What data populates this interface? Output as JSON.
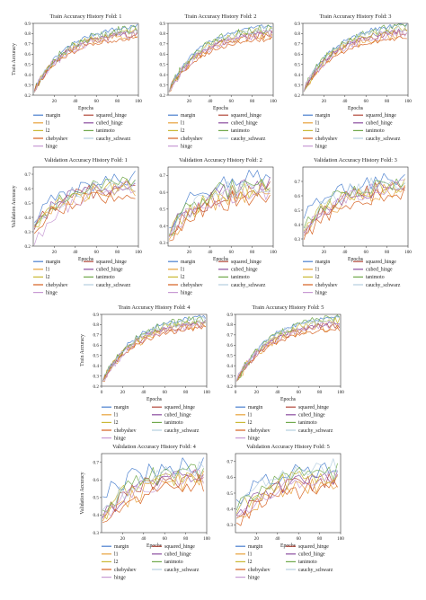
{
  "series_names": [
    "margin",
    "squared_hinge",
    "l1",
    "cubed_hinge",
    "l2",
    "tanimoto",
    "chebyshev",
    "cauchy_schwarz",
    "hinge"
  ],
  "colors": {
    "margin": "#4a7fcf",
    "squared_hinge": "#b3473a",
    "l1": "#e8a13a",
    "cubed_hinge": "#8a4c9e",
    "l2": "#c9b833",
    "tanimoto": "#6fa84a",
    "chebyshev": "#d65f1e",
    "cauchy_schwarz": "#b5cfe0",
    "hinge": "#c79ad4"
  },
  "chart_data": [
    {
      "type": "line",
      "title": "Train Accuracy History Fold: 1",
      "xlabel": "Epochs",
      "ylabel": "Train Accuracy",
      "xlim": [
        0,
        100
      ],
      "ylim": [
        0.2,
        0.9
      ],
      "xticks": [
        20,
        40,
        60,
        80,
        100
      ],
      "yticks": [
        0.2,
        0.3,
        0.4,
        0.5,
        0.6,
        0.7,
        0.8,
        0.9
      ],
      "ytick_labels": [
        "0.2",
        "0.3",
        "0.4",
        "0.5",
        "0.6",
        "0.7",
        "0.8",
        "0.9"
      ],
      "legend": "below",
      "series": [
        {
          "name": "margin",
          "start": 0.25,
          "end": 0.87
        },
        {
          "name": "squared_hinge",
          "start": 0.25,
          "end": 0.8
        },
        {
          "name": "l1",
          "start": 0.25,
          "end": 0.8
        },
        {
          "name": "cubed_hinge",
          "start": 0.25,
          "end": 0.82
        },
        {
          "name": "l2",
          "start": 0.25,
          "end": 0.83
        },
        {
          "name": "tanimoto",
          "start": 0.25,
          "end": 0.85
        },
        {
          "name": "chebyshev",
          "start": 0.25,
          "end": 0.76
        },
        {
          "name": "cauchy_schwarz",
          "start": 0.25,
          "end": 0.84
        },
        {
          "name": "hinge",
          "start": 0.25,
          "end": 0.8
        }
      ]
    },
    {
      "type": "line",
      "title": "Train Accuracy History Fold: 2",
      "xlabel": "Epochs",
      "ylabel": "",
      "xlim": [
        0,
        100
      ],
      "ylim": [
        0.2,
        0.9
      ],
      "xticks": [
        20,
        40,
        60,
        80,
        100
      ],
      "yticks": [
        0.2,
        0.3,
        0.4,
        0.5,
        0.6,
        0.7,
        0.8,
        0.9
      ],
      "ytick_labels": [
        "0.2",
        "0.3",
        "0.4",
        "0.5",
        "0.6",
        "0.7",
        "0.8",
        "0.9"
      ],
      "legend": "below",
      "series": [
        {
          "name": "margin",
          "start": 0.25,
          "end": 0.88
        },
        {
          "name": "squared_hinge",
          "start": 0.25,
          "end": 0.8
        },
        {
          "name": "l1",
          "start": 0.25,
          "end": 0.79
        },
        {
          "name": "cubed_hinge",
          "start": 0.25,
          "end": 0.82
        },
        {
          "name": "l2",
          "start": 0.25,
          "end": 0.84
        },
        {
          "name": "tanimoto",
          "start": 0.25,
          "end": 0.86
        },
        {
          "name": "chebyshev",
          "start": 0.25,
          "end": 0.75
        },
        {
          "name": "cauchy_schwarz",
          "start": 0.25,
          "end": 0.85
        },
        {
          "name": "hinge",
          "start": 0.25,
          "end": 0.8
        }
      ]
    },
    {
      "type": "line",
      "title": "Train Accuracy History Fold: 3",
      "xlabel": "Epochs",
      "ylabel": "",
      "xlim": [
        0,
        100
      ],
      "ylim": [
        0.2,
        0.9
      ],
      "xticks": [
        20,
        40,
        60,
        80,
        100
      ],
      "yticks": [
        0.2,
        0.3,
        0.4,
        0.5,
        0.6,
        0.7,
        0.8,
        0.9
      ],
      "ytick_labels": [
        "0.2",
        "0.3",
        "0.4",
        "0.5",
        "0.6",
        "0.7",
        "0.8",
        "0.9"
      ],
      "legend": "below",
      "series": [
        {
          "name": "margin",
          "start": 0.25,
          "end": 0.89
        },
        {
          "name": "squared_hinge",
          "start": 0.25,
          "end": 0.82
        },
        {
          "name": "l1",
          "start": 0.25,
          "end": 0.8
        },
        {
          "name": "cubed_hinge",
          "start": 0.25,
          "end": 0.83
        },
        {
          "name": "l2",
          "start": 0.25,
          "end": 0.85
        },
        {
          "name": "tanimoto",
          "start": 0.25,
          "end": 0.87
        },
        {
          "name": "chebyshev",
          "start": 0.25,
          "end": 0.76
        },
        {
          "name": "cauchy_schwarz",
          "start": 0.25,
          "end": 0.86
        },
        {
          "name": "hinge",
          "start": 0.25,
          "end": 0.81
        }
      ]
    },
    {
      "type": "line",
      "title": "Validation Accuracy History Fold: 1",
      "xlabel": "Epochs",
      "ylabel": "Validation Accuracy",
      "xlim": [
        0,
        100
      ],
      "ylim": [
        0.2,
        0.75
      ],
      "xticks": [
        20,
        40,
        60,
        80,
        100
      ],
      "yticks": [
        0.2,
        0.3,
        0.4,
        0.5,
        0.6,
        0.7
      ],
      "ytick_labels": [
        "0.2",
        "0.3",
        "0.4",
        "0.5",
        "0.6",
        "0.7"
      ],
      "legend": "below",
      "series": [
        {
          "name": "margin",
          "start": 0.38,
          "end": 0.67
        },
        {
          "name": "squared_hinge",
          "start": 0.35,
          "end": 0.62
        },
        {
          "name": "l1",
          "start": 0.33,
          "end": 0.6
        },
        {
          "name": "cubed_hinge",
          "start": 0.33,
          "end": 0.63
        },
        {
          "name": "l2",
          "start": 0.35,
          "end": 0.62
        },
        {
          "name": "tanimoto",
          "start": 0.36,
          "end": 0.65
        },
        {
          "name": "chebyshev",
          "start": 0.3,
          "end": 0.57
        },
        {
          "name": "cauchy_schwarz",
          "start": 0.36,
          "end": 0.64
        },
        {
          "name": "hinge",
          "start": 0.22,
          "end": 0.62
        }
      ]
    },
    {
      "type": "line",
      "title": "Validation Accuracy History Fold: 2",
      "xlabel": "Epochs",
      "ylabel": "",
      "xlim": [
        0,
        100
      ],
      "ylim": [
        0.28,
        0.75
      ],
      "xticks": [
        20,
        40,
        60,
        80,
        100
      ],
      "yticks": [
        0.3,
        0.4,
        0.5,
        0.6,
        0.7
      ],
      "ytick_labels": [
        "0.3",
        "0.4",
        "0.5",
        "0.6",
        "0.7"
      ],
      "legend": "below",
      "series": [
        {
          "name": "margin",
          "start": 0.4,
          "end": 0.7
        },
        {
          "name": "squared_hinge",
          "start": 0.35,
          "end": 0.62
        },
        {
          "name": "l1",
          "start": 0.33,
          "end": 0.6
        },
        {
          "name": "cubed_hinge",
          "start": 0.35,
          "end": 0.64
        },
        {
          "name": "l2",
          "start": 0.35,
          "end": 0.63
        },
        {
          "name": "tanimoto",
          "start": 0.36,
          "end": 0.66
        },
        {
          "name": "chebyshev",
          "start": 0.32,
          "end": 0.58
        },
        {
          "name": "cauchy_schwarz",
          "start": 0.36,
          "end": 0.65
        },
        {
          "name": "hinge",
          "start": 0.34,
          "end": 0.61
        }
      ]
    },
    {
      "type": "line",
      "title": "Validation Accuracy History Fold: 3",
      "xlabel": "Epochs",
      "ylabel": "",
      "xlim": [
        0,
        100
      ],
      "ylim": [
        0.25,
        0.8
      ],
      "xticks": [
        20,
        40,
        60,
        80,
        100
      ],
      "yticks": [
        0.3,
        0.4,
        0.5,
        0.6,
        0.7
      ],
      "ytick_labels": [
        "0.3",
        "0.4",
        "0.5",
        "0.6",
        "0.7"
      ],
      "legend": "below",
      "series": [
        {
          "name": "margin",
          "start": 0.45,
          "end": 0.72
        },
        {
          "name": "squared_hinge",
          "start": 0.35,
          "end": 0.66
        },
        {
          "name": "l1",
          "start": 0.33,
          "end": 0.64
        },
        {
          "name": "cubed_hinge",
          "start": 0.35,
          "end": 0.67
        },
        {
          "name": "l2",
          "start": 0.36,
          "end": 0.68
        },
        {
          "name": "tanimoto",
          "start": 0.38,
          "end": 0.7
        },
        {
          "name": "chebyshev",
          "start": 0.3,
          "end": 0.62
        },
        {
          "name": "cauchy_schwarz",
          "start": 0.38,
          "end": 0.7
        },
        {
          "name": "hinge",
          "start": 0.33,
          "end": 0.66
        }
      ]
    },
    {
      "type": "line",
      "title": "Train Accuracy History Fold: 4",
      "xlabel": "Epochs",
      "ylabel": "Train Accuracy",
      "xlim": [
        0,
        100
      ],
      "ylim": [
        0.2,
        0.9
      ],
      "xticks": [
        0,
        20,
        40,
        60,
        80,
        100
      ],
      "yticks": [
        0.2,
        0.3,
        0.4,
        0.5,
        0.6,
        0.7,
        0.8,
        0.9
      ],
      "ytick_labels": [
        "0.2",
        "0.3",
        "0.4",
        "0.5",
        "0.6",
        "0.7",
        "0.8",
        "0.9"
      ],
      "legend": "below",
      "series": [
        {
          "name": "margin",
          "start": 0.25,
          "end": 0.88
        },
        {
          "name": "squared_hinge",
          "start": 0.25,
          "end": 0.81
        },
        {
          "name": "l1",
          "start": 0.25,
          "end": 0.8
        },
        {
          "name": "cubed_hinge",
          "start": 0.25,
          "end": 0.83
        },
        {
          "name": "l2",
          "start": 0.25,
          "end": 0.84
        },
        {
          "name": "tanimoto",
          "start": 0.25,
          "end": 0.86
        },
        {
          "name": "chebyshev",
          "start": 0.25,
          "end": 0.77
        },
        {
          "name": "cauchy_schwarz",
          "start": 0.25,
          "end": 0.85
        },
        {
          "name": "hinge",
          "start": 0.25,
          "end": 0.8
        }
      ]
    },
    {
      "type": "line",
      "title": "Train Accuracy History Fold: 5",
      "xlabel": "Epochs",
      "ylabel": "",
      "xlim": [
        0,
        100
      ],
      "ylim": [
        0.2,
        0.9
      ],
      "xticks": [
        0,
        20,
        40,
        60,
        80,
        100
      ],
      "yticks": [
        0.2,
        0.3,
        0.4,
        0.5,
        0.6,
        0.7,
        0.8,
        0.9
      ],
      "ytick_labels": [
        "0.2",
        "0.3",
        "0.4",
        "0.5",
        "0.6",
        "0.7",
        "0.8",
        "0.9"
      ],
      "legend": "below",
      "series": [
        {
          "name": "margin",
          "start": 0.25,
          "end": 0.88
        },
        {
          "name": "squared_hinge",
          "start": 0.25,
          "end": 0.8
        },
        {
          "name": "l1",
          "start": 0.25,
          "end": 0.79
        },
        {
          "name": "cubed_hinge",
          "start": 0.25,
          "end": 0.82
        },
        {
          "name": "l2",
          "start": 0.25,
          "end": 0.84
        },
        {
          "name": "tanimoto",
          "start": 0.25,
          "end": 0.87
        },
        {
          "name": "chebyshev",
          "start": 0.25,
          "end": 0.76
        },
        {
          "name": "cauchy_schwarz",
          "start": 0.25,
          "end": 0.86
        },
        {
          "name": "hinge",
          "start": 0.25,
          "end": 0.8
        }
      ]
    },
    {
      "type": "line",
      "title": "Validation Accuracy History Fold: 4",
      "xlabel": "Epochs",
      "ylabel": "Validation Accuracy",
      "xlim": [
        0,
        100
      ],
      "ylim": [
        0.3,
        0.75
      ],
      "xticks": [
        20,
        40,
        60,
        80,
        100
      ],
      "yticks": [
        0.3,
        0.4,
        0.5,
        0.6,
        0.7
      ],
      "ytick_labels": [
        "0.3",
        "0.4",
        "0.5",
        "0.6",
        "0.7"
      ],
      "legend": "below",
      "series": [
        {
          "name": "margin",
          "start": 0.5,
          "end": 0.68
        },
        {
          "name": "squared_hinge",
          "start": 0.38,
          "end": 0.62
        },
        {
          "name": "l1",
          "start": 0.36,
          "end": 0.6
        },
        {
          "name": "cubed_hinge",
          "start": 0.38,
          "end": 0.63
        },
        {
          "name": "l2",
          "start": 0.4,
          "end": 0.64
        },
        {
          "name": "tanimoto",
          "start": 0.42,
          "end": 0.66
        },
        {
          "name": "chebyshev",
          "start": 0.35,
          "end": 0.58
        },
        {
          "name": "cauchy_schwarz",
          "start": 0.42,
          "end": 0.66
        },
        {
          "name": "hinge",
          "start": 0.37,
          "end": 0.62
        }
      ]
    },
    {
      "type": "line",
      "title": "Validation Accuracy History Fold: 5",
      "xlabel": "Epochs",
      "ylabel": "",
      "xlim": [
        0,
        100
      ],
      "ylim": [
        0.25,
        0.75
      ],
      "xticks": [
        20,
        40,
        60,
        80,
        100
      ],
      "yticks": [
        0.3,
        0.4,
        0.5,
        0.6,
        0.7
      ],
      "ytick_labels": [
        "0.3",
        "0.4",
        "0.5",
        "0.6",
        "0.7"
      ],
      "legend": "below",
      "series": [
        {
          "name": "margin",
          "start": 0.45,
          "end": 0.66
        },
        {
          "name": "squared_hinge",
          "start": 0.35,
          "end": 0.58
        },
        {
          "name": "l1",
          "start": 0.33,
          "end": 0.56
        },
        {
          "name": "cubed_hinge",
          "start": 0.35,
          "end": 0.6
        },
        {
          "name": "l2",
          "start": 0.36,
          "end": 0.62
        },
        {
          "name": "tanimoto",
          "start": 0.38,
          "end": 0.64
        },
        {
          "name": "chebyshev",
          "start": 0.3,
          "end": 0.54
        },
        {
          "name": "cauchy_schwarz",
          "start": 0.4,
          "end": 0.68
        },
        {
          "name": "hinge",
          "start": 0.33,
          "end": 0.6
        }
      ]
    }
  ]
}
